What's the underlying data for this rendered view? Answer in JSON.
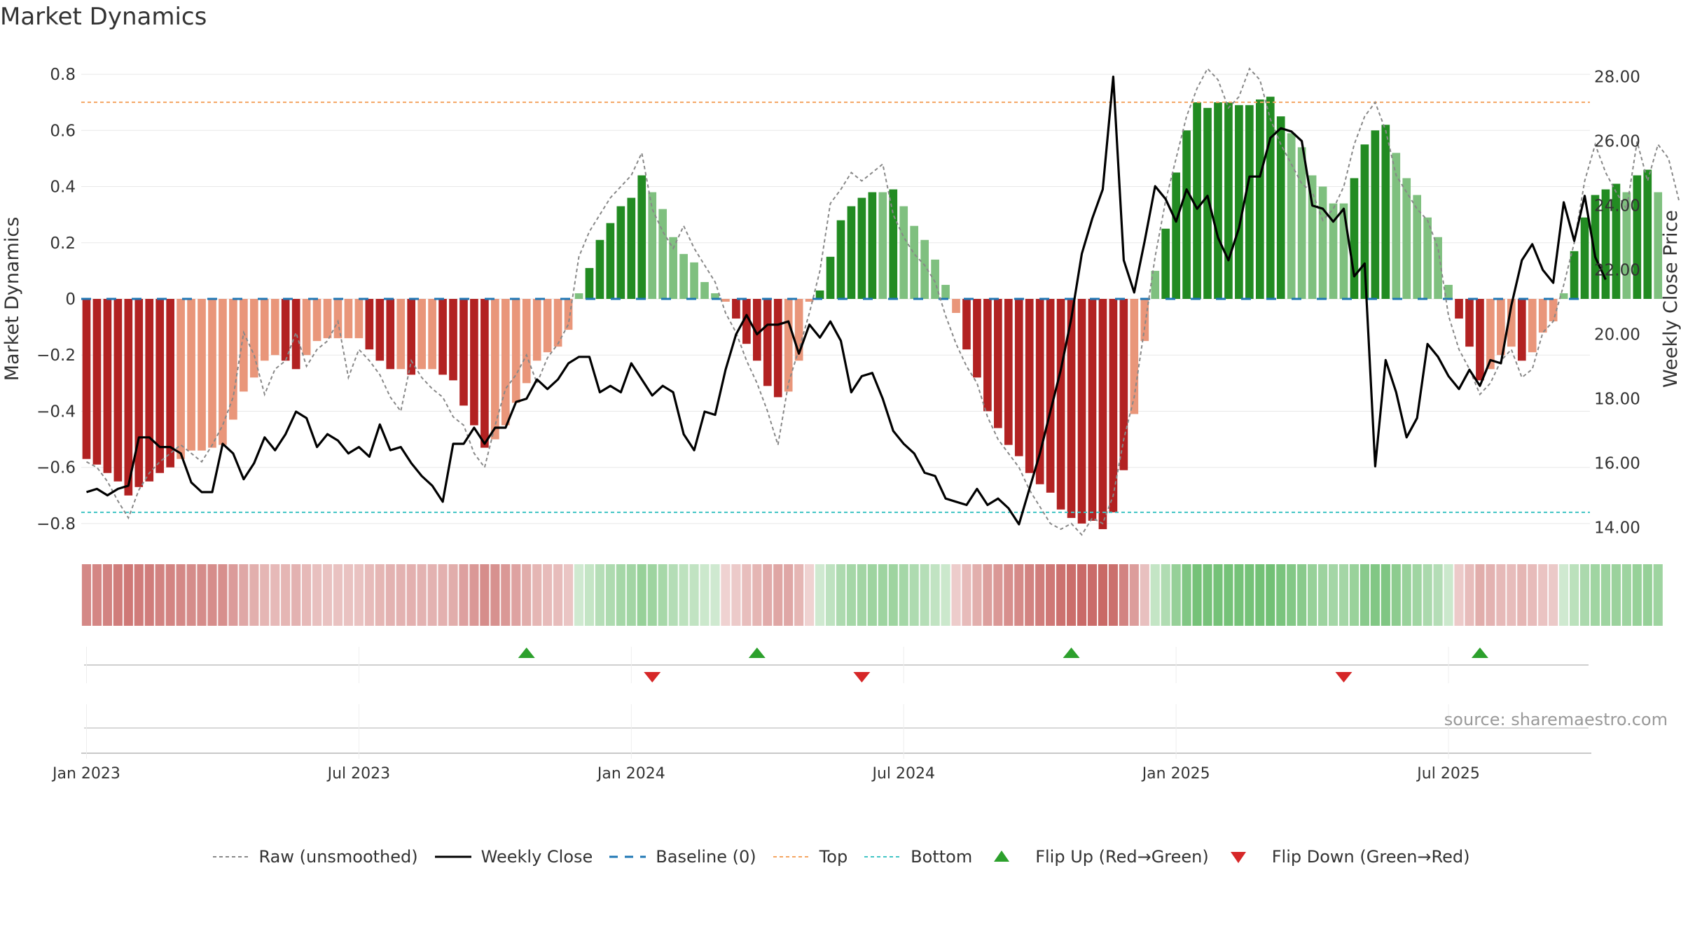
{
  "page": {
    "title": "Market Dynamics",
    "source": "source: sharemaestro.com"
  },
  "colors": {
    "strong_red": "#b22222",
    "light_red": "#e9967a",
    "strong_green": "#228b22",
    "light_green": "#7fc07f",
    "raw_line": "#888888",
    "close_line": "#000000",
    "baseline": "#1f77b4",
    "top": "#f4a460",
    "bottom": "#40c4c4",
    "flip_up": "#2ca02c",
    "flip_down": "#d62728"
  },
  "legend": [
    {
      "key": "raw",
      "label": "Raw (unsmoothed)"
    },
    {
      "key": "close",
      "label": "Weekly Close"
    },
    {
      "key": "baseline",
      "label": "Baseline (0)"
    },
    {
      "key": "top",
      "label": "Top"
    },
    {
      "key": "bottom",
      "label": "Bottom"
    },
    {
      "key": "flipup",
      "label": "Flip Up (Red→Green)"
    },
    {
      "key": "flipdown",
      "label": "Flip Down (Green→Red)"
    }
  ],
  "chart_data": {
    "type": "bar",
    "title": "Market Dynamics",
    "ylabel": "Market Dynamics",
    "y2label": "Weekly Close Price",
    "ylim": [
      -0.86,
      0.86
    ],
    "y2lim": [
      13.6,
      28.6
    ],
    "yticks": [
      {
        "v": 0.8,
        "label": "0.8"
      },
      {
        "v": 0.6,
        "label": "0.6"
      },
      {
        "v": 0.4,
        "label": "0.4"
      },
      {
        "v": 0.2,
        "label": "0.2"
      },
      {
        "v": 0,
        "label": "0"
      },
      {
        "v": -0.2,
        "label": "−0.2"
      },
      {
        "v": -0.4,
        "label": "−0.4"
      },
      {
        "v": -0.6,
        "label": "−0.6"
      },
      {
        "v": -0.8,
        "label": "−0.8"
      }
    ],
    "y2ticks": [
      {
        "v": 28,
        "label": "28.00"
      },
      {
        "v": 26,
        "label": "26.00"
      },
      {
        "v": 24,
        "label": "24.00"
      },
      {
        "v": 22,
        "label": "22.00"
      },
      {
        "v": 20,
        "label": "20.00"
      },
      {
        "v": 18,
        "label": "18.00"
      },
      {
        "v": 16,
        "label": "16.00"
      },
      {
        "v": 14,
        "label": "14.00"
      }
    ],
    "xticks": [
      {
        "week": 1,
        "label": "Jan 2023"
      },
      {
        "week": 27,
        "label": "Jul 2023"
      },
      {
        "week": 53,
        "label": "Jan 2024"
      },
      {
        "week": 79,
        "label": "Jul 2024"
      },
      {
        "week": 105,
        "label": "Jan 2025"
      },
      {
        "week": 131,
        "label": "Jul 2025"
      }
    ],
    "top_line": 0.7,
    "bottom_line": -0.76,
    "baseline": 0,
    "weeks": 144,
    "bars": [
      -0.57,
      -0.59,
      -0.62,
      -0.65,
      -0.7,
      -0.67,
      -0.65,
      -0.62,
      -0.6,
      -0.57,
      -0.54,
      -0.54,
      -0.53,
      -0.52,
      -0.43,
      -0.33,
      -0.28,
      -0.22,
      -0.2,
      -0.22,
      -0.25,
      -0.2,
      -0.15,
      -0.14,
      -0.14,
      -0.14,
      -0.14,
      -0.18,
      -0.22,
      -0.25,
      -0.25,
      -0.27,
      -0.25,
      -0.25,
      -0.27,
      -0.29,
      -0.38,
      -0.45,
      -0.53,
      -0.5,
      -0.45,
      -0.37,
      -0.3,
      -0.22,
      -0.19,
      -0.17,
      -0.11,
      0.02,
      0.11,
      0.21,
      0.27,
      0.33,
      0.36,
      0.44,
      0.38,
      0.32,
      0.22,
      0.16,
      0.13,
      0.06,
      0.02,
      -0.01,
      -0.07,
      -0.16,
      -0.22,
      -0.31,
      -0.35,
      -0.33,
      -0.22,
      -0.01,
      0.03,
      0.15,
      0.28,
      0.33,
      0.36,
      0.38,
      0.38,
      0.39,
      0.33,
      0.26,
      0.21,
      0.14,
      0.05,
      -0.05,
      -0.18,
      -0.28,
      -0.4,
      -0.46,
      -0.52,
      -0.56,
      -0.62,
      -0.66,
      -0.69,
      -0.75,
      -0.78,
      -0.8,
      -0.79,
      -0.82,
      -0.76,
      -0.61,
      -0.41,
      -0.15,
      0.1,
      0.25,
      0.45,
      0.6,
      0.7,
      0.68,
      0.7,
      0.7,
      0.69,
      0.69,
      0.71,
      0.72,
      0.65,
      0.59,
      0.54,
      0.44,
      0.4,
      0.34,
      0.34,
      0.43,
      0.55,
      0.6,
      0.62,
      0.52,
      0.43,
      0.37,
      0.29,
      0.22,
      0.05,
      -0.07,
      -0.17,
      -0.29,
      -0.25,
      -0.2,
      -0.17,
      -0.22,
      -0.19,
      -0.12,
      -0.08,
      0.02,
      0.17,
      0.29,
      0.37,
      0.39,
      0.41,
      0.38,
      0.44,
      0.46,
      0.38
    ],
    "raw": [
      -0.58,
      -0.6,
      -0.65,
      -0.72,
      -0.78,
      -0.68,
      -0.62,
      -0.58,
      -0.55,
      -0.52,
      -0.55,
      -0.58,
      -0.52,
      -0.45,
      -0.35,
      -0.12,
      -0.2,
      -0.34,
      -0.25,
      -0.22,
      -0.12,
      -0.24,
      -0.18,
      -0.15,
      -0.08,
      -0.28,
      -0.18,
      -0.22,
      -0.27,
      -0.35,
      -0.4,
      -0.22,
      -0.28,
      -0.32,
      -0.35,
      -0.42,
      -0.45,
      -0.55,
      -0.6,
      -0.45,
      -0.32,
      -0.27,
      -0.2,
      -0.3,
      -0.21,
      -0.16,
      -0.09,
      0.15,
      0.24,
      0.3,
      0.36,
      0.4,
      0.44,
      0.52,
      0.32,
      0.24,
      0.18,
      0.26,
      0.18,
      0.12,
      0.06,
      -0.05,
      -0.12,
      -0.22,
      -0.3,
      -0.4,
      -0.52,
      -0.3,
      -0.18,
      -0.05,
      0.1,
      0.34,
      0.39,
      0.45,
      0.42,
      0.45,
      0.48,
      0.3,
      0.22,
      0.16,
      0.12,
      0.06,
      -0.06,
      -0.16,
      -0.24,
      -0.3,
      -0.42,
      -0.5,
      -0.55,
      -0.6,
      -0.68,
      -0.74,
      -0.8,
      -0.82,
      -0.8,
      -0.84,
      -0.78,
      -0.8,
      -0.7,
      -0.5,
      -0.35,
      -0.1,
      0.15,
      0.35,
      0.5,
      0.65,
      0.75,
      0.82,
      0.78,
      0.68,
      0.72,
      0.82,
      0.78,
      0.64,
      0.55,
      0.48,
      0.41,
      0.38,
      0.28,
      0.32,
      0.4,
      0.55,
      0.65,
      0.7,
      0.6,
      0.44,
      0.38,
      0.32,
      0.28,
      0.18,
      -0.06,
      -0.18,
      -0.25,
      -0.34,
      -0.3,
      -0.22,
      -0.18,
      -0.28,
      -0.25,
      -0.12,
      -0.08,
      0.05,
      0.2,
      0.42,
      0.55,
      0.45,
      0.38,
      0.32,
      0.56,
      0.42,
      0.55,
      0.5,
      0.35
    ],
    "close": [
      15.1,
      15.2,
      15.0,
      15.2,
      15.3,
      16.8,
      16.8,
      16.5,
      16.5,
      16.3,
      15.4,
      15.1,
      15.1,
      16.6,
      16.3,
      15.5,
      16.0,
      16.8,
      16.4,
      16.9,
      17.6,
      17.4,
      16.5,
      16.9,
      16.7,
      16.3,
      16.5,
      16.2,
      17.2,
      16.4,
      16.5,
      16.0,
      15.6,
      15.3,
      14.8,
      16.6,
      16.6,
      17.1,
      16.6,
      17.1,
      17.1,
      17.9,
      18.0,
      18.6,
      18.3,
      18.6,
      19.1,
      19.3,
      19.3,
      18.2,
      18.4,
      18.2,
      19.1,
      18.6,
      18.1,
      18.4,
      18.2,
      16.9,
      16.4,
      17.6,
      17.5,
      18.9,
      20.0,
      20.6,
      20.0,
      20.3,
      20.3,
      20.4,
      19.4,
      20.3,
      19.9,
      20.4,
      19.8,
      18.2,
      18.7,
      18.8,
      18.0,
      17.0,
      16.6,
      16.3,
      15.7,
      15.6,
      14.9,
      14.8,
      14.7,
      15.2,
      14.7,
      14.9,
      14.6,
      14.1,
      15.2,
      16.3,
      17.6,
      18.9,
      20.5,
      22.5,
      23.6,
      24.5,
      28.0,
      22.3,
      21.3,
      22.9,
      24.6,
      24.2,
      23.5,
      24.5,
      23.9,
      24.3,
      23.0,
      22.3,
      23.3,
      24.9,
      24.9,
      26.1,
      26.4,
      26.3,
      26.0,
      24.0,
      23.9,
      23.5,
      23.9,
      21.8,
      22.2,
      15.9,
      19.2,
      18.2,
      16.8,
      17.4,
      19.7,
      19.3,
      18.7,
      18.3,
      18.9,
      18.4,
      19.2,
      19.1,
      20.9,
      22.3,
      22.8,
      22.0,
      21.6,
      24.1,
      22.9,
      24.3,
      22.4,
      21.7
    ],
    "band": [
      -0.57,
      -0.59,
      -0.62,
      -0.65,
      -0.7,
      -0.67,
      -0.65,
      -0.62,
      -0.6,
      -0.57,
      -0.54,
      -0.54,
      -0.53,
      -0.52,
      -0.43,
      -0.33,
      -0.28,
      -0.22,
      -0.2,
      -0.22,
      -0.25,
      -0.2,
      -0.15,
      -0.14,
      -0.14,
      -0.14,
      -0.14,
      -0.18,
      -0.22,
      -0.25,
      -0.25,
      -0.27,
      -0.25,
      -0.25,
      -0.27,
      -0.29,
      -0.38,
      -0.45,
      -0.53,
      -0.5,
      -0.45,
      -0.37,
      -0.3,
      -0.22,
      -0.19,
      -0.17,
      -0.11,
      0.02,
      0.11,
      0.21,
      0.27,
      0.33,
      0.36,
      0.44,
      0.38,
      0.32,
      0.22,
      0.16,
      0.13,
      0.06,
      0.02,
      -0.01,
      -0.07,
      -0.16,
      -0.22,
      -0.31,
      -0.35,
      -0.33,
      -0.22,
      -0.01,
      0.03,
      0.15,
      0.28,
      0.33,
      0.36,
      0.38,
      0.38,
      0.39,
      0.33,
      0.26,
      0.21,
      0.14,
      0.05,
      -0.05,
      -0.18,
      -0.28,
      -0.4,
      -0.46,
      -0.52,
      -0.56,
      -0.62,
      -0.66,
      -0.69,
      -0.75,
      -0.78,
      -0.8,
      -0.79,
      -0.82,
      -0.76,
      -0.61,
      -0.41,
      -0.15,
      0.1,
      0.25,
      0.45,
      0.6,
      0.7,
      0.68,
      0.7,
      0.7,
      0.69,
      0.69,
      0.71,
      0.72,
      0.65,
      0.59,
      0.54,
      0.44,
      0.4,
      0.34,
      0.34,
      0.43,
      0.55,
      0.6,
      0.62,
      0.52,
      0.43,
      0.37,
      0.29,
      0.22,
      0.05,
      -0.07,
      -0.17,
      -0.29,
      -0.25,
      -0.2,
      -0.17,
      -0.22,
      -0.19,
      -0.12,
      -0.08,
      0.02,
      0.17,
      0.29,
      0.37,
      0.39,
      0.41,
      0.38,
      0.44,
      0.46,
      0.38
    ],
    "flips": [
      {
        "week": 42,
        "dir": "up"
      },
      {
        "week": 54,
        "dir": "down"
      },
      {
        "week": 64,
        "dir": "up"
      },
      {
        "week": 74,
        "dir": "down"
      },
      {
        "week": 94,
        "dir": "up"
      },
      {
        "week": 120,
        "dir": "down"
      },
      {
        "week": 133,
        "dir": "up"
      }
    ]
  }
}
